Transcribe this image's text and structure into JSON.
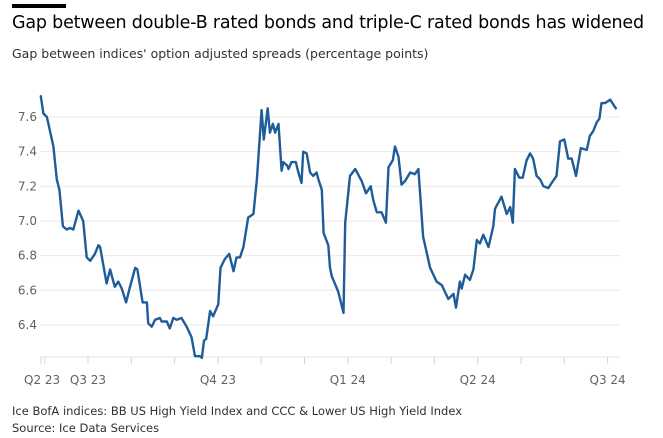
{
  "header": {
    "title": "Gap between double-B rated bonds and triple-C rated bonds has widened",
    "subtitle": "Gap between indices' option adjusted spreads (percentage points)"
  },
  "footer": {
    "note": "Ice BofA indices: BB US High Yield Index and CCC & Lower US High Yield Index",
    "source": "Source: Ice Data Services"
  },
  "colors": {
    "line": "#1f5c99",
    "grid": "#ebe8e6"
  },
  "chart_data": {
    "type": "line",
    "title": "Gap between double-B rated bonds and triple-C rated bonds has widened",
    "ylabel": "percentage points",
    "xlabel": "",
    "x_unit": "months since start of Q3 2023",
    "ylim": [
      6.2,
      7.75
    ],
    "yticks": [
      6.4,
      6.6,
      6.8,
      7.0,
      7.2,
      7.4,
      7.6
    ],
    "ytick_labels": [
      "6.4",
      "6.6",
      "6.8",
      "7.0",
      "7.2",
      "7.4",
      "7.6"
    ],
    "xticks_minor": [
      -1,
      0,
      1,
      2,
      3,
      4,
      5,
      6,
      7,
      8,
      9,
      10,
      11,
      12
    ],
    "xticks": [
      {
        "x": -1,
        "label": "Q2 23"
      },
      {
        "x": 0,
        "label": "Q3 23"
      },
      {
        "x": 3,
        "label": "Q4 23"
      },
      {
        "x": 6,
        "label": "Q1 24"
      },
      {
        "x": 9,
        "label": "Q2 24"
      },
      {
        "x": 12,
        "label": "Q3 24"
      }
    ],
    "grid": true,
    "series": [
      {
        "name": "BB vs CCC OAS gap",
        "x": [
          -1.09,
          -1.03,
          -0.95,
          -0.8,
          -0.72,
          -0.66,
          -0.58,
          -0.49,
          -0.42,
          -0.34,
          -0.22,
          -0.11,
          -0.03,
          0.05,
          0.16,
          0.24,
          0.28,
          0.43,
          0.51,
          0.62,
          0.7,
          0.78,
          0.88,
          0.97,
          1.09,
          1.14,
          1.26,
          1.36,
          1.39,
          1.47,
          1.55,
          1.66,
          1.7,
          1.82,
          1.89,
          1.97,
          2.05,
          2.16,
          2.28,
          2.39,
          2.47,
          2.59,
          2.63,
          2.68,
          2.73,
          2.82,
          2.89,
          3.01,
          3.06,
          3.16,
          3.26,
          3.36,
          3.43,
          3.51,
          3.59,
          3.7,
          3.82,
          3.9,
          4.01,
          4.06,
          4.15,
          4.2,
          4.27,
          4.32,
          4.4,
          4.47,
          4.51,
          4.6,
          4.63,
          4.7,
          4.8,
          4.86,
          4.93,
          4.97,
          5.05,
          5.13,
          5.2,
          5.28,
          5.32,
          5.4,
          5.44,
          5.55,
          5.59,
          5.63,
          5.7,
          5.78,
          5.9,
          5.94,
          6.05,
          6.17,
          6.32,
          6.42,
          6.53,
          6.59,
          6.67,
          6.78,
          6.88,
          6.94,
          7.04,
          7.09,
          7.17,
          7.24,
          7.32,
          7.44,
          7.55,
          7.63,
          7.74,
          7.9,
          8.05,
          8.17,
          8.32,
          8.44,
          8.5,
          8.59,
          8.63,
          8.71,
          8.82,
          8.9,
          8.98,
          9.05,
          9.13,
          9.25,
          9.36,
          9.4,
          9.55,
          9.67,
          9.75,
          9.81,
          9.86,
          9.96,
          10.04,
          10.13,
          10.21,
          10.28,
          10.36,
          10.44,
          10.52,
          10.63,
          10.71,
          10.82,
          10.9,
          11.0,
          11.09,
          11.17,
          11.27,
          11.38,
          11.52,
          11.59,
          11.67,
          11.75,
          11.81,
          11.86,
          11.94,
          12.06,
          12.19
        ],
        "values": [
          7.72,
          7.62,
          7.6,
          7.43,
          7.24,
          7.18,
          6.97,
          6.95,
          6.96,
          6.95,
          7.06,
          7.0,
          6.79,
          6.77,
          6.81,
          6.86,
          6.85,
          6.64,
          6.72,
          6.62,
          6.65,
          6.61,
          6.53,
          6.62,
          6.73,
          6.72,
          6.53,
          6.53,
          6.41,
          6.39,
          6.43,
          6.44,
          6.42,
          6.42,
          6.38,
          6.44,
          6.43,
          6.44,
          6.39,
          6.33,
          6.22,
          6.22,
          6.21,
          6.31,
          6.32,
          6.48,
          6.45,
          6.52,
          6.73,
          6.78,
          6.81,
          6.71,
          6.79,
          6.79,
          6.85,
          7.02,
          7.04,
          7.24,
          7.64,
          7.47,
          7.65,
          7.51,
          7.56,
          7.51,
          7.56,
          7.29,
          7.34,
          7.32,
          7.3,
          7.34,
          7.34,
          7.28,
          7.22,
          7.4,
          7.39,
          7.28,
          7.26,
          7.28,
          7.24,
          7.18,
          6.93,
          6.86,
          6.73,
          6.68,
          6.64,
          6.59,
          6.47,
          6.99,
          7.26,
          7.3,
          7.23,
          7.16,
          7.2,
          7.12,
          7.05,
          7.05,
          6.99,
          7.31,
          7.35,
          7.43,
          7.37,
          7.21,
          7.23,
          7.28,
          7.27,
          7.3,
          6.91,
          6.73,
          6.65,
          6.63,
          6.55,
          6.58,
          6.5,
          6.65,
          6.61,
          6.69,
          6.66,
          6.72,
          6.89,
          6.87,
          6.92,
          6.85,
          6.97,
          7.07,
          7.14,
          7.04,
          7.08,
          6.99,
          7.3,
          7.25,
          7.25,
          7.35,
          7.39,
          7.36,
          7.26,
          7.24,
          7.2,
          7.19,
          7.22,
          7.26,
          7.46,
          7.47,
          7.36,
          7.36,
          7.26,
          7.42,
          7.41,
          7.49,
          7.52,
          7.57,
          7.59,
          7.68,
          7.68,
          7.7,
          7.65
        ]
      }
    ]
  }
}
